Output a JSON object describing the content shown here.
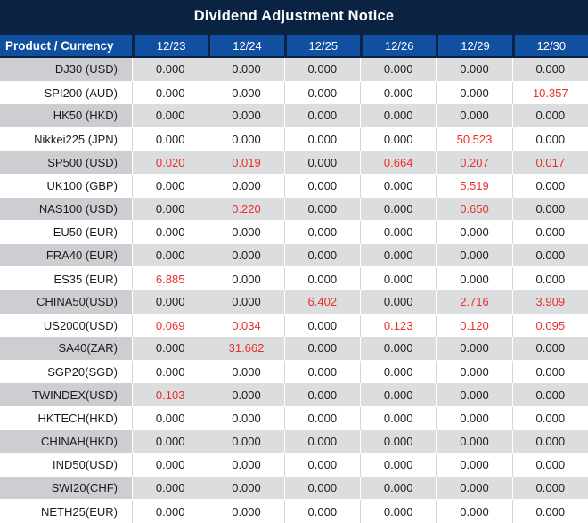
{
  "title": "Dividend Adjustment Notice",
  "colors": {
    "title_bar_bg": "#0b2342",
    "header_bg": "#1150a0",
    "stripe_gray_label": "#ccced2",
    "stripe_gray_value": "#dcdddf",
    "nonzero_red": "#e8302a",
    "text_black": "#1c1c1c"
  },
  "table": {
    "product_header": "Product / Currency",
    "date_headers": [
      "12/23",
      "12/24",
      "12/25",
      "12/26",
      "12/29",
      "12/30"
    ],
    "rows": [
      {
        "product": "DJ30 (USD)",
        "values": [
          "0.000",
          "0.000",
          "0.000",
          "0.000",
          "0.000",
          "0.000"
        ]
      },
      {
        "product": "SPI200 (AUD)",
        "values": [
          "0.000",
          "0.000",
          "0.000",
          "0.000",
          "0.000",
          "10.357"
        ]
      },
      {
        "product": "HK50 (HKD)",
        "values": [
          "0.000",
          "0.000",
          "0.000",
          "0.000",
          "0.000",
          "0.000"
        ]
      },
      {
        "product": "Nikkei225 (JPN)",
        "values": [
          "0.000",
          "0.000",
          "0.000",
          "0.000",
          "50.523",
          "0.000"
        ]
      },
      {
        "product": "SP500 (USD)",
        "values": [
          "0.020",
          "0.019",
          "0.000",
          "0.664",
          "0.207",
          "0.017"
        ]
      },
      {
        "product": "UK100 (GBP)",
        "values": [
          "0.000",
          "0.000",
          "0.000",
          "0.000",
          "5.519",
          "0.000"
        ]
      },
      {
        "product": "NAS100 (USD)",
        "values": [
          "0.000",
          "0.220",
          "0.000",
          "0.000",
          "0.650",
          "0.000"
        ]
      },
      {
        "product": "EU50 (EUR)",
        "values": [
          "0.000",
          "0.000",
          "0.000",
          "0.000",
          "0.000",
          "0.000"
        ]
      },
      {
        "product": "FRA40 (EUR)",
        "values": [
          "0.000",
          "0.000",
          "0.000",
          "0.000",
          "0.000",
          "0.000"
        ]
      },
      {
        "product": "ES35 (EUR)",
        "values": [
          "6.885",
          "0.000",
          "0.000",
          "0.000",
          "0.000",
          "0.000"
        ]
      },
      {
        "product": "CHINA50(USD)",
        "values": [
          "0.000",
          "0.000",
          "6.402",
          "0.000",
          "2.716",
          "3.909"
        ]
      },
      {
        "product": "US2000(USD)",
        "values": [
          "0.069",
          "0.034",
          "0.000",
          "0.123",
          "0.120",
          "0.095"
        ]
      },
      {
        "product": "SA40(ZAR)",
        "values": [
          "0.000",
          "31.662",
          "0.000",
          "0.000",
          "0.000",
          "0.000"
        ]
      },
      {
        "product": "SGP20(SGD)",
        "values": [
          "0.000",
          "0.000",
          "0.000",
          "0.000",
          "0.000",
          "0.000"
        ]
      },
      {
        "product": "TWINDEX(USD)",
        "values": [
          "0.103",
          "0.000",
          "0.000",
          "0.000",
          "0.000",
          "0.000"
        ]
      },
      {
        "product": "HKTECH(HKD)",
        "values": [
          "0.000",
          "0.000",
          "0.000",
          "0.000",
          "0.000",
          "0.000"
        ]
      },
      {
        "product": "CHINAH(HKD)",
        "values": [
          "0.000",
          "0.000",
          "0.000",
          "0.000",
          "0.000",
          "0.000"
        ]
      },
      {
        "product": "IND50(USD)",
        "values": [
          "0.000",
          "0.000",
          "0.000",
          "0.000",
          "0.000",
          "0.000"
        ]
      },
      {
        "product": "SWI20(CHF)",
        "values": [
          "0.000",
          "0.000",
          "0.000",
          "0.000",
          "0.000",
          "0.000"
        ]
      },
      {
        "product": "NETH25(EUR)",
        "values": [
          "0.000",
          "0.000",
          "0.000",
          "0.000",
          "0.000",
          "0.000"
        ]
      }
    ],
    "highlight_rule": "nonzero values shown in red"
  }
}
